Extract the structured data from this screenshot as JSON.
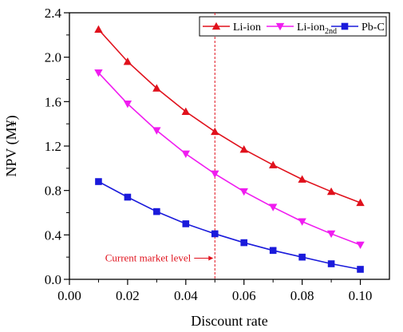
{
  "chart_data": {
    "type": "line",
    "xlabel": "Discount rate",
    "ylabel": "NPV (M¥)",
    "xlim": [
      0.0,
      0.11
    ],
    "ylim": [
      0.0,
      2.4
    ],
    "xticks": [
      "0.00",
      "0.02",
      "0.04",
      "0.06",
      "0.08",
      "0.10"
    ],
    "yticks": [
      "0.0",
      "0.4",
      "0.8",
      "1.2",
      "1.6",
      "2.0",
      "2.4"
    ],
    "x": [
      0.01,
      0.02,
      0.03,
      0.04,
      0.05,
      0.06,
      0.07,
      0.08,
      0.09,
      0.1
    ],
    "legend_position": "top-right",
    "series": [
      {
        "name": "Li-ion",
        "color": "#e0111c",
        "marker": "triangle-up",
        "values": [
          2.25,
          1.96,
          1.72,
          1.51,
          1.33,
          1.17,
          1.03,
          0.9,
          0.79,
          0.69
        ]
      },
      {
        "name": "Li-ion",
        "name_subscript": "2nd",
        "color": "#f01cf0",
        "marker": "triangle-down",
        "values": [
          1.86,
          1.58,
          1.34,
          1.13,
          0.95,
          0.79,
          0.65,
          0.52,
          0.41,
          0.31
        ]
      },
      {
        "name": "Pb-C",
        "color": "#1a1adb",
        "marker": "square",
        "values": [
          0.88,
          0.74,
          0.61,
          0.5,
          0.41,
          0.33,
          0.26,
          0.2,
          0.14,
          0.09
        ]
      }
    ],
    "annotation": {
      "text": "Current market level",
      "x": 0.05,
      "y_text": 0.19,
      "color": "#e0111c"
    }
  }
}
